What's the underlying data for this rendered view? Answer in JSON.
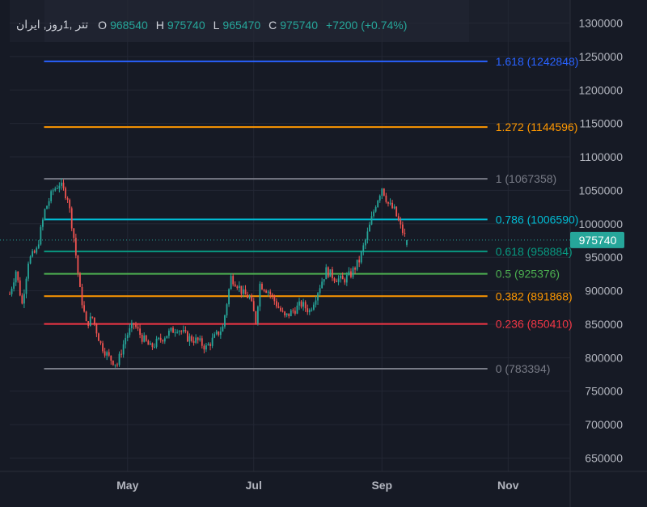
{
  "symbol": {
    "name": "تتر",
    "interval": "1روز",
    "exchange": "ایران",
    "display": "تتر ,1روز, ایران"
  },
  "ohlc": {
    "open_label": "O",
    "open": "968540",
    "high_label": "H",
    "high": "975740",
    "low_label": "L",
    "low": "965470",
    "close_label": "C",
    "close": "975740",
    "change": "+7200 (+0.74%)"
  },
  "colors": {
    "background": "#161a25",
    "up": "#26a69a",
    "down": "#ef5350",
    "text": "#b2b5be",
    "grid": "#232734"
  },
  "chart_data": {
    "type": "candlestick",
    "title": "",
    "xlabel": "",
    "ylabel": "",
    "ylim": [
      630000,
      1320000
    ],
    "y_ticks": [
      650000,
      700000,
      750000,
      800000,
      850000,
      900000,
      950000,
      1000000,
      1050000,
      1100000,
      1150000,
      1200000,
      1250000,
      1300000
    ],
    "x_ticks": [
      {
        "label": "May",
        "date": "2024-05-01"
      },
      {
        "label": "Jul",
        "date": "2024-07-01"
      },
      {
        "label": "Sep",
        "date": "2024-09-01"
      },
      {
        "label": "Nov",
        "date": "2024-11-01"
      }
    ],
    "x_range": [
      "2024-03-05",
      "2024-12-01"
    ],
    "last_price": "975740",
    "price_path": [
      [
        "2024-03-05",
        895000
      ],
      [
        "2024-03-08",
        930000
      ],
      [
        "2024-03-11",
        880000
      ],
      [
        "2024-03-14",
        945000
      ],
      [
        "2024-03-18",
        960000
      ],
      [
        "2024-03-22",
        1020000
      ],
      [
        "2024-03-26",
        1050000
      ],
      [
        "2024-03-29",
        1060000
      ],
      [
        "2024-04-02",
        1040000
      ],
      [
        "2024-04-05",
        980000
      ],
      [
        "2024-04-08",
        900000
      ],
      [
        "2024-04-11",
        850000
      ],
      [
        "2024-04-14",
        860000
      ],
      [
        "2024-04-18",
        820000
      ],
      [
        "2024-04-22",
        800000
      ],
      [
        "2024-04-26",
        790000
      ],
      [
        "2024-04-30",
        830000
      ],
      [
        "2024-05-04",
        850000
      ],
      [
        "2024-05-08",
        830000
      ],
      [
        "2024-05-12",
        815000
      ],
      [
        "2024-05-16",
        825000
      ],
      [
        "2024-05-20",
        835000
      ],
      [
        "2024-05-25",
        845000
      ],
      [
        "2024-05-30",
        830000
      ],
      [
        "2024-06-04",
        825000
      ],
      [
        "2024-06-08",
        815000
      ],
      [
        "2024-06-12",
        830000
      ],
      [
        "2024-06-16",
        845000
      ],
      [
        "2024-06-20",
        920000
      ],
      [
        "2024-06-23",
        910000
      ],
      [
        "2024-06-26",
        895000
      ],
      [
        "2024-06-29",
        890000
      ],
      [
        "2024-07-02",
        855000
      ],
      [
        "2024-07-04",
        910000
      ],
      [
        "2024-07-08",
        900000
      ],
      [
        "2024-07-12",
        880000
      ],
      [
        "2024-07-16",
        860000
      ],
      [
        "2024-07-20",
        870000
      ],
      [
        "2024-07-24",
        880000
      ],
      [
        "2024-07-28",
        870000
      ],
      [
        "2024-08-01",
        900000
      ],
      [
        "2024-08-05",
        930000
      ],
      [
        "2024-08-09",
        920000
      ],
      [
        "2024-08-13",
        915000
      ],
      [
        "2024-08-17",
        925000
      ],
      [
        "2024-08-21",
        945000
      ],
      [
        "2024-08-25",
        985000
      ],
      [
        "2024-08-29",
        1030000
      ],
      [
        "2024-09-01",
        1055000
      ],
      [
        "2024-09-04",
        1030000
      ],
      [
        "2024-09-07",
        1020000
      ],
      [
        "2024-09-10",
        995000
      ],
      [
        "2024-09-13",
        975740
      ]
    ],
    "fib_levels": [
      {
        "ratio": "1.618",
        "price": 1242848,
        "label": "1.618 (1242848)",
        "color": "#2962ff"
      },
      {
        "ratio": "1.272",
        "price": 1144596,
        "label": "1.272 (1144596)",
        "color": "#ff9800"
      },
      {
        "ratio": "1",
        "price": 1067358,
        "label": "1 (1067358)",
        "color": "#787b86"
      },
      {
        "ratio": "0.786",
        "price": 1006590,
        "label": "0.786 (1006590)",
        "color": "#00bcd4"
      },
      {
        "ratio": "0.618",
        "price": 958884,
        "label": "0.618 (958884)",
        "color": "#089981"
      },
      {
        "ratio": "0.5",
        "price": 925376,
        "label": "0.5 (925376)",
        "color": "#4caf50"
      },
      {
        "ratio": "0.382",
        "price": 891868,
        "label": "0.382 (891868)",
        "color": "#ff9800"
      },
      {
        "ratio": "0.236",
        "price": 850410,
        "label": "0.236 (850410)",
        "color": "#f23645"
      },
      {
        "ratio": "0",
        "price": 783394,
        "label": "0 (783394)",
        "color": "#787b86"
      }
    ],
    "fib_start": "2024-03-22",
    "fib_end": "2024-10-22",
    "grid": true,
    "legend": "top-left"
  }
}
